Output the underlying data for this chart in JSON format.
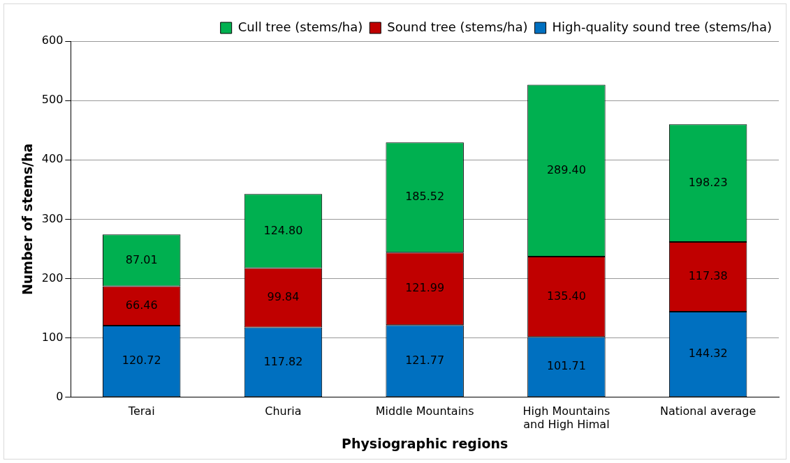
{
  "chart_data": {
    "type": "bar",
    "stacked": true,
    "xlabel": "Physiographic regions",
    "ylabel": "Number of stems/ha",
    "categories": [
      "Terai",
      "Churia",
      "Middle Mountains",
      "High Mountains and High Himal",
      "National average"
    ],
    "series": [
      {
        "name": "High-quality sound tree (stems/ha)",
        "color": "#0070c0",
        "values": [
          120.72,
          117.82,
          121.77,
          101.71,
          144.32
        ]
      },
      {
        "name": "Sound tree (stems/ha)",
        "color": "#c00000",
        "values": [
          66.46,
          99.84,
          121.99,
          135.4,
          117.38
        ]
      },
      {
        "name": "Cull tree (stems/ha)",
        "color": "#00b050",
        "values": [
          87.01,
          124.8,
          185.52,
          289.4,
          198.23
        ]
      }
    ],
    "value_labels": [
      [
        "120.72",
        "117.82",
        "121.77",
        "101.71",
        "144.32"
      ],
      [
        "66.46",
        "99.84",
        "121.99",
        "135.40",
        "117.38"
      ],
      [
        "87.01",
        "124.80",
        "185.52",
        "289.40",
        "198.23"
      ]
    ],
    "ylim": [
      0,
      600
    ],
    "yticks": [
      0,
      100,
      200,
      300,
      400,
      500,
      600
    ],
    "grid": "y",
    "legend": "top right"
  }
}
